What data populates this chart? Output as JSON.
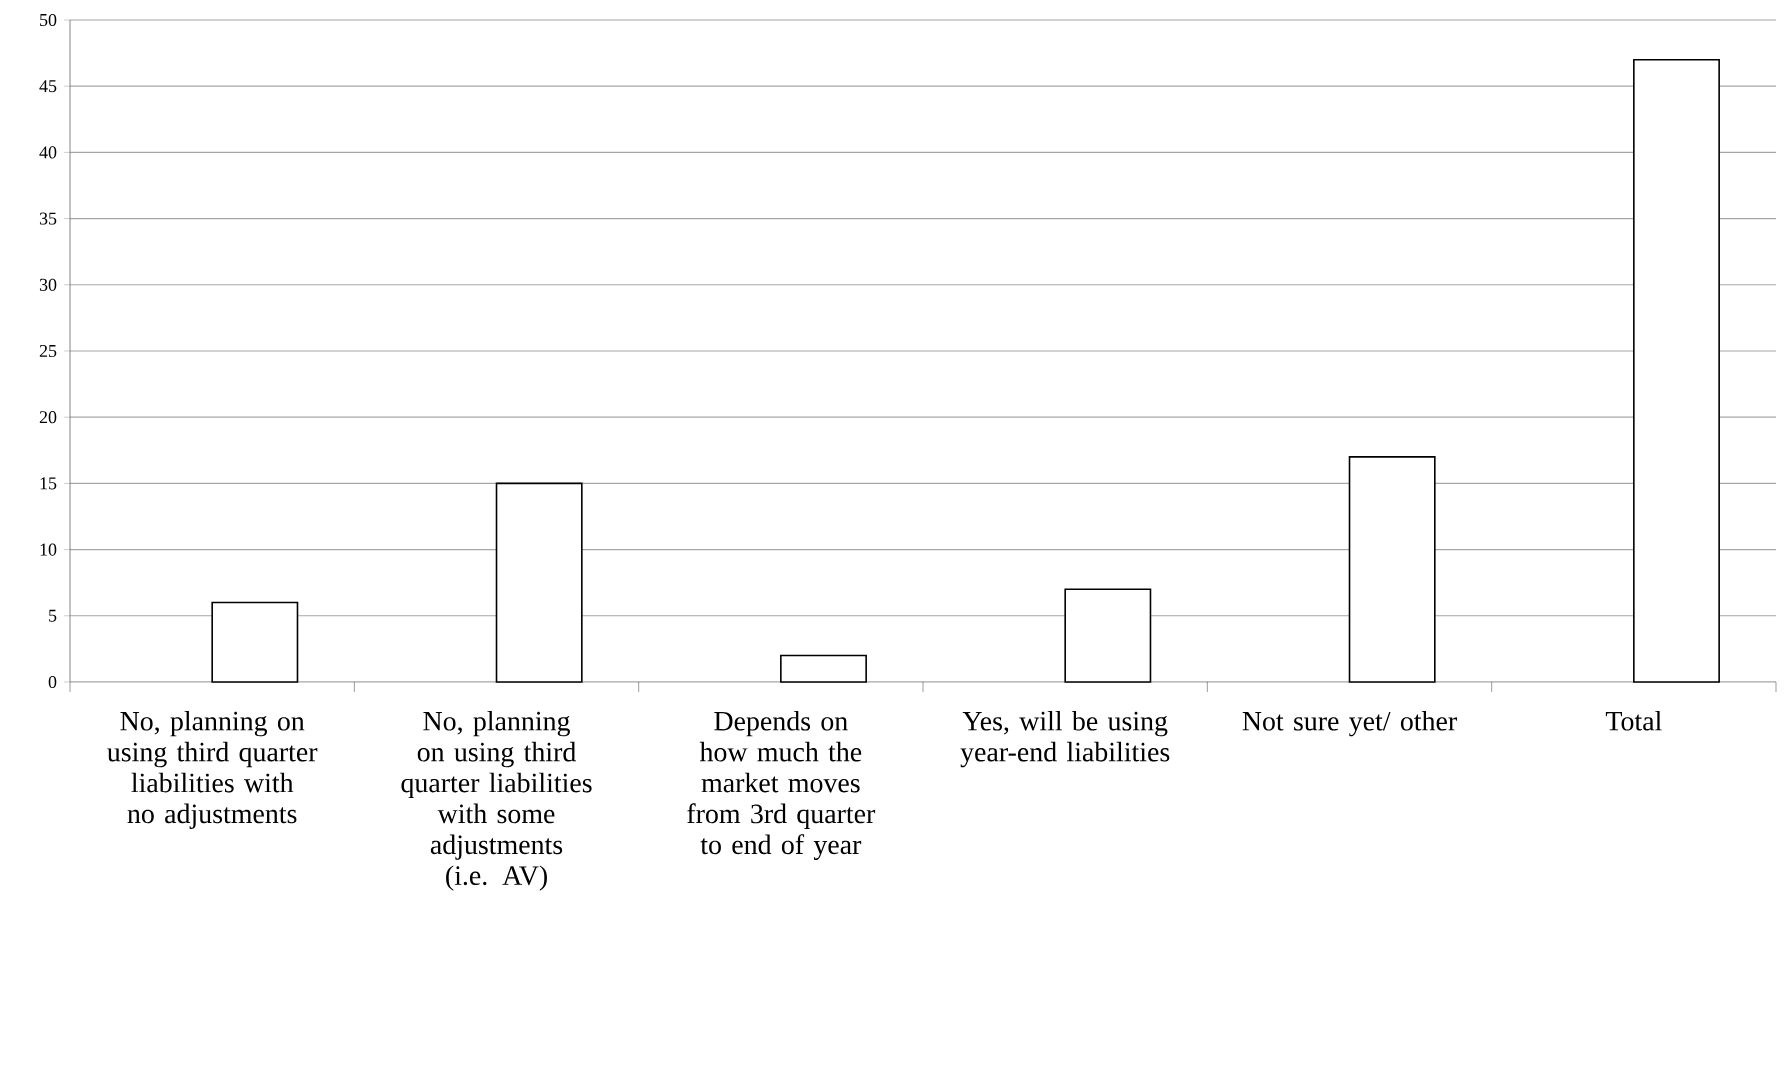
{
  "chart_data": {
    "type": "bar",
    "categories": [
      "No, planning on using third quarter liabilities with no adjustments",
      "No, planning on using third quarter liabilities with some adjustments (i.e. AV)",
      "Depends on how much the market moves from 3rd quarter to end of year",
      "Yes, will be using year-end liabilities",
      "Not sure yet/ other",
      "Total"
    ],
    "values": [
      6,
      15,
      2,
      7,
      17,
      47
    ],
    "color": "#ffffff",
    "ylim": [
      0,
      50
    ],
    "yticks": [
      0,
      5,
      10,
      15,
      20,
      25,
      30,
      35,
      40,
      45,
      50
    ],
    "grid": "y"
  }
}
